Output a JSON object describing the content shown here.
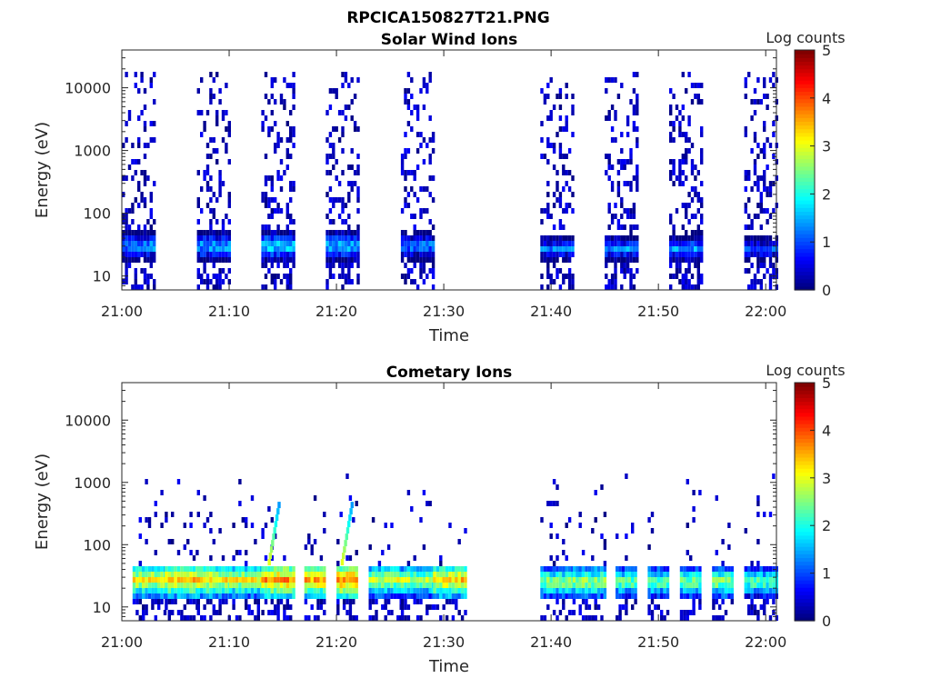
{
  "figure_title": "RPCICA150827T21.PNG",
  "chart_data": [
    {
      "type": "heatmap",
      "title": "Solar Wind Ions",
      "xlabel": "Time",
      "ylabel": "Energy (eV)",
      "xlim": [
        "21:00",
        "22:01"
      ],
      "ylim": [
        6,
        40000
      ],
      "y_scale": "log",
      "x_ticks": [
        "21:00",
        "21:10",
        "21:20",
        "21:30",
        "21:40",
        "21:50",
        "22:00"
      ],
      "y_ticks": [
        "10",
        "100",
        "1000",
        "10000"
      ],
      "colorbar": {
        "label": "Log counts",
        "range": [
          0,
          5
        ],
        "ticks": [
          "0",
          "1",
          "2",
          "3",
          "4",
          "5"
        ],
        "colormap": "jet"
      },
      "data_gap": [
        "21:32",
        "21:39"
      ],
      "bursts": [
        {
          "start": "21:00",
          "end": "21:03",
          "peak_energy_eV": 33,
          "peak_log_counts": 1.9
        },
        {
          "start": "21:07",
          "end": "21:10",
          "peak_energy_eV": 33,
          "peak_log_counts": 2.0
        },
        {
          "start": "21:13",
          "end": "21:16",
          "peak_energy_eV": 33,
          "peak_log_counts": 2.2
        },
        {
          "start": "21:19",
          "end": "21:22",
          "peak_energy_eV": 33,
          "peak_log_counts": 2.1
        },
        {
          "start": "21:26",
          "end": "21:29",
          "peak_energy_eV": 33,
          "peak_log_counts": 1.8
        },
        {
          "start": "21:39",
          "end": "21:42",
          "peak_energy_eV": 30,
          "peak_log_counts": 1.6
        },
        {
          "start": "21:45",
          "end": "21:48",
          "peak_energy_eV": 30,
          "peak_log_counts": 1.7
        },
        {
          "start": "21:51",
          "end": "21:54",
          "peak_energy_eV": 30,
          "peak_log_counts": 1.8
        },
        {
          "start": "21:58",
          "end": "22:01",
          "peak_energy_eV": 30,
          "peak_log_counts": 1.5
        }
      ]
    },
    {
      "type": "heatmap",
      "title": "Cometary Ions",
      "xlabel": "Time",
      "ylabel": "Energy (eV)",
      "xlim": [
        "21:00",
        "22:01"
      ],
      "ylim": [
        6,
        40000
      ],
      "y_scale": "log",
      "x_ticks": [
        "21:00",
        "21:10",
        "21:20",
        "21:30",
        "21:40",
        "21:50",
        "22:00"
      ],
      "y_ticks": [
        "10",
        "100",
        "1000",
        "10000"
      ],
      "colorbar": {
        "label": "Log counts",
        "range": [
          0,
          5
        ],
        "ticks": [
          "0",
          "1",
          "2",
          "3",
          "4",
          "5"
        ],
        "colormap": "jet"
      },
      "data_gap": [
        "21:32",
        "21:39"
      ],
      "bursts": [
        {
          "start": "21:01",
          "end": "21:04",
          "peak_energy_eV": 30,
          "peak_log_counts": 3.6
        },
        {
          "start": "21:04",
          "end": "21:07",
          "peak_energy_eV": 30,
          "peak_log_counts": 3.8
        },
        {
          "start": "21:07",
          "end": "21:10",
          "peak_energy_eV": 30,
          "peak_log_counts": 3.7
        },
        {
          "start": "21:10",
          "end": "21:13",
          "peak_energy_eV": 30,
          "peak_log_counts": 3.5
        },
        {
          "start": "21:13",
          "end": "21:16",
          "peak_energy_eV": 30,
          "peak_log_counts": 4.1
        },
        {
          "start": "21:17",
          "end": "21:19",
          "peak_energy_eV": 30,
          "peak_log_counts": 3.9
        },
        {
          "start": "21:20",
          "end": "21:22",
          "peak_energy_eV": 30,
          "peak_log_counts": 4.2
        },
        {
          "start": "21:23",
          "end": "21:26",
          "peak_energy_eV": 30,
          "peak_log_counts": 3.3
        },
        {
          "start": "21:26",
          "end": "21:29",
          "peak_energy_eV": 30,
          "peak_log_counts": 3.2
        },
        {
          "start": "21:29",
          "end": "21:32",
          "peak_energy_eV": 30,
          "peak_log_counts": 3.8
        },
        {
          "start": "21:39",
          "end": "21:42",
          "peak_energy_eV": 28,
          "peak_log_counts": 3.1
        },
        {
          "start": "21:42",
          "end": "21:45",
          "peak_energy_eV": 28,
          "peak_log_counts": 3.2
        },
        {
          "start": "21:46",
          "end": "21:48",
          "peak_energy_eV": 28,
          "peak_log_counts": 2.9
        },
        {
          "start": "21:49",
          "end": "21:51",
          "peak_energy_eV": 28,
          "peak_log_counts": 2.9
        },
        {
          "start": "21:52",
          "end": "21:54",
          "peak_energy_eV": 28,
          "peak_log_counts": 3.0
        },
        {
          "start": "21:55",
          "end": "21:57",
          "peak_energy_eV": 28,
          "peak_log_counts": 3.1
        },
        {
          "start": "21:58",
          "end": "22:01",
          "peak_energy_eV": 28,
          "peak_log_counts": 2.8
        }
      ]
    }
  ]
}
